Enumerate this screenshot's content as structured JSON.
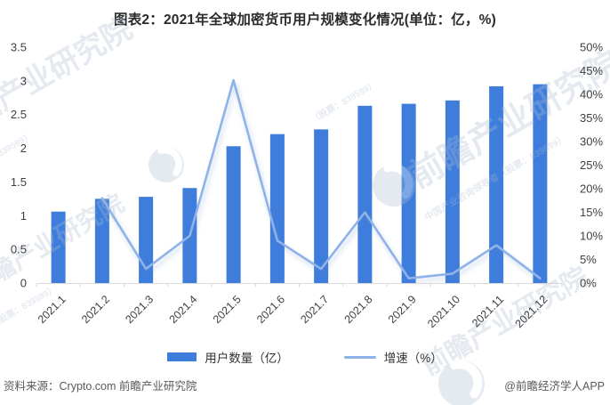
{
  "title": "图表2：2021年全球加密货币用户规模变化情况(单位：亿，%)",
  "chart_data": {
    "type": "bar",
    "title": "图表2：2021年全球加密货币用户规模变化情况(单位：亿，%)",
    "categories": [
      "2021.1",
      "2021.2",
      "2021.3",
      "2021.4",
      "2021.5",
      "2021.6",
      "2021.7",
      "2021.8",
      "2021.9",
      "2021.10",
      "2021.11",
      "2021.12"
    ],
    "series": [
      {
        "name": "用户数量（亿）",
        "type": "bar",
        "axis": "left",
        "color": "#3E7DDC",
        "values": [
          1.06,
          1.25,
          1.28,
          1.41,
          2.03,
          2.21,
          2.28,
          2.63,
          2.66,
          2.71,
          2.92,
          2.95
        ]
      },
      {
        "name": "增速（%）",
        "type": "line",
        "axis": "right",
        "color": "#8FB3E8",
        "values": [
          null,
          18,
          3,
          10,
          43,
          9,
          3,
          15,
          1,
          2,
          8,
          1
        ]
      }
    ],
    "left_axis": {
      "min": 0,
      "max": 3.5,
      "step": 0.5,
      "unit": "亿"
    },
    "right_axis": {
      "min": 0,
      "max": 50,
      "step": 5,
      "suffix": "%"
    },
    "grid": false,
    "legend_position": "bottom"
  },
  "watermark": {
    "brand": "前瞻产业研究院",
    "sub": "中国产业咨询领导者（股票：839599）",
    "stock": "（股票：839599）"
  },
  "footer": {
    "source": "资料来源：Crypto.com 前瞻产业研究院",
    "credit": "@前瞻经济学人APP"
  },
  "colors": {
    "bar": "#3E7DDC",
    "line": "#8FB3E8",
    "axis": "#D9D9D9",
    "tick_text": "#404040",
    "title_text": "#2B2B2B",
    "footer_text": "#595959",
    "watermark": "#AEBDD2"
  }
}
